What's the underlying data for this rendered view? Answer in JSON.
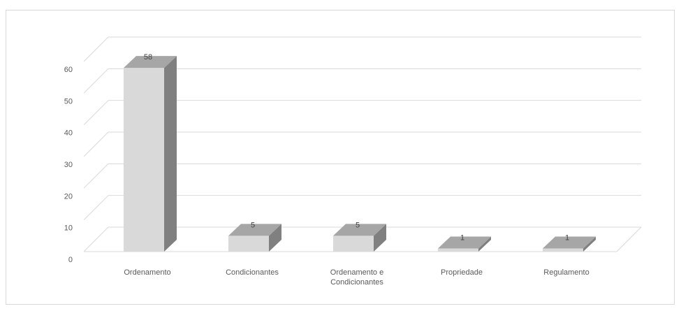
{
  "chart_data": {
    "type": "bar",
    "categories": [
      "Ordenamento",
      "Condicionantes",
      "Ordenamento e Condicionantes",
      "Propriedade",
      "Regulamento"
    ],
    "category_lines": [
      [
        "Ordenamento"
      ],
      [
        "Condicionantes"
      ],
      [
        "Ordenamento e",
        "Condicionantes"
      ],
      [
        "Propriedade"
      ],
      [
        "Regulamento"
      ]
    ],
    "values": [
      58,
      5,
      5,
      1,
      1
    ],
    "data_labels": [
      "58",
      "5",
      "5",
      "1",
      "1"
    ],
    "y_ticks": [
      "0",
      "10",
      "20",
      "30",
      "40",
      "50",
      "60"
    ],
    "ylim": [
      0,
      60
    ],
    "grid": true,
    "style": "3d-column",
    "colors": {
      "front": "#d9d9d9",
      "side": "#808080",
      "top": "#a6a6a6",
      "grid": "#d9d9d9"
    }
  }
}
